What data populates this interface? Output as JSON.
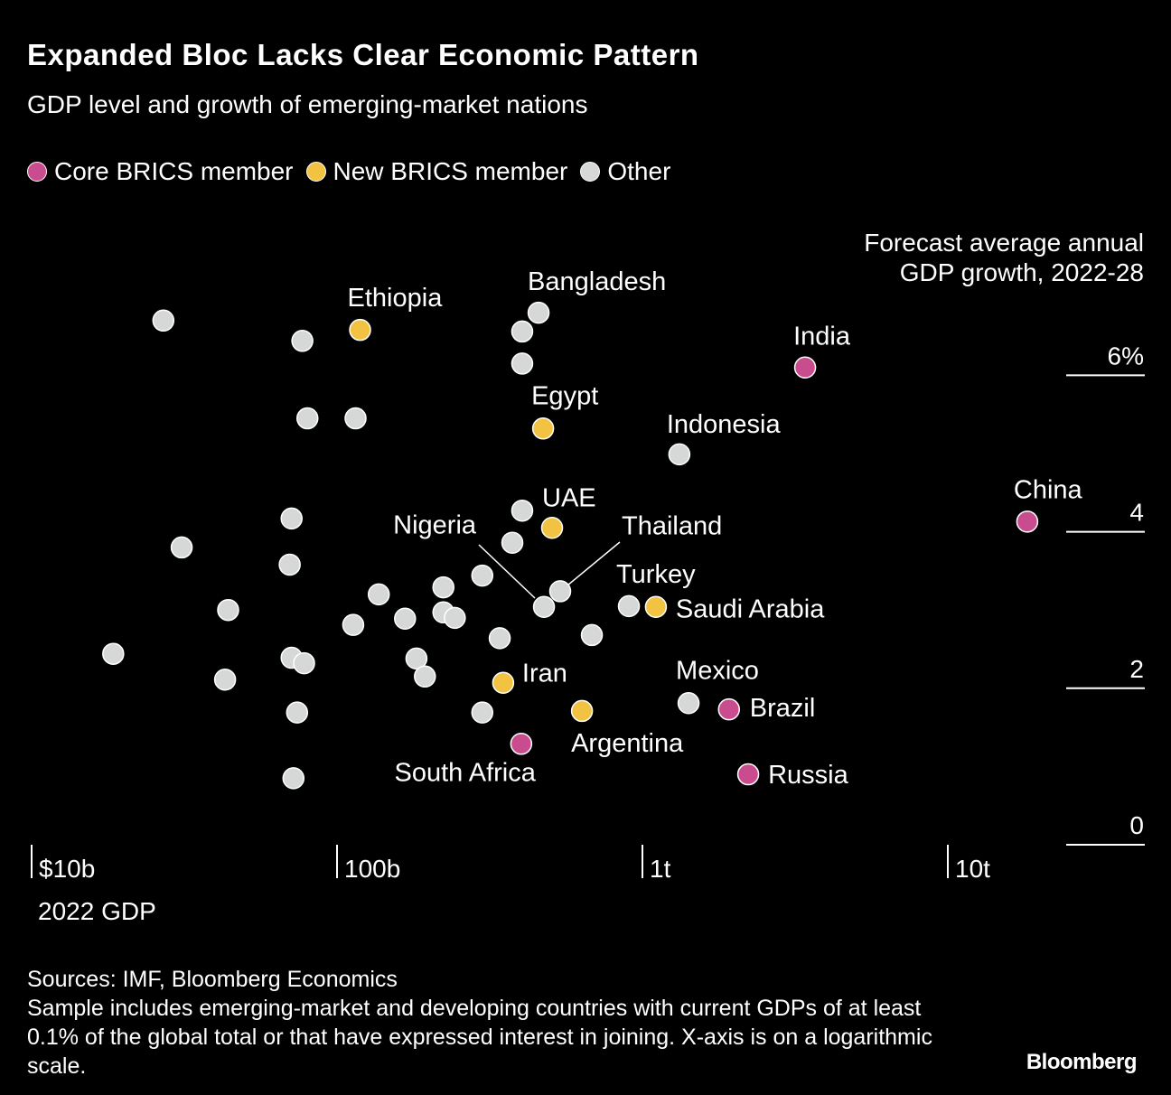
{
  "title": "Expanded Bloc Lacks Clear Economic Pattern",
  "subtitle": "GDP level and growth of emerging-market nations",
  "legend": [
    {
      "label": "Core BRICS member",
      "color": "#c94c8e"
    },
    {
      "label": "New BRICS member",
      "color": "#f2c343"
    },
    {
      "label": "Other",
      "color": "#d6d8d8"
    }
  ],
  "footer": {
    "sources": "Sources: IMF, Bloomberg Economics",
    "note": "Sample includes emerging-market and developing countries with current GDPs of at least 0.1% of the global total or that have expressed interest in joining. X-axis is on a logarithmic scale."
  },
  "logo": "Bloomberg",
  "chart_data": {
    "type": "scatter",
    "xlabel": "2022 GDP",
    "ylabel": "Forecast average annual GDP growth, 2022-28",
    "ylabel_lines": [
      "Forecast average annual",
      "GDP growth, 2022-28"
    ],
    "x_scale": "log",
    "x_unit": "billion USD",
    "xlim": [
      10,
      30000
    ],
    "ylim": [
      0,
      7
    ],
    "x_ticks": [
      {
        "value": 10,
        "label": "$10b"
      },
      {
        "value": 100,
        "label": "100b"
      },
      {
        "value": 1000,
        "label": "1t"
      },
      {
        "value": 10000,
        "label": "10t"
      }
    ],
    "y_ticks": [
      {
        "value": 0,
        "label": "0"
      },
      {
        "value": 2,
        "label": "2"
      },
      {
        "value": 4,
        "label": "4"
      },
      {
        "value": 6,
        "label": "6%"
      }
    ],
    "grid": false,
    "legend_placement": "top-left",
    "points": [
      {
        "label": "India",
        "group": "core",
        "x": 3410,
        "y": 6.1
      },
      {
        "label": "China",
        "group": "core",
        "x": 18200,
        "y": 4.13
      },
      {
        "label": "Brazil",
        "group": "core",
        "x": 1920,
        "y": 1.73
      },
      {
        "label": "Russia",
        "group": "core",
        "x": 2220,
        "y": 0.9
      },
      {
        "label": "South Africa",
        "group": "core",
        "x": 401,
        "y": 1.29
      },
      {
        "label": "Ethiopia",
        "group": "new",
        "x": 119,
        "y": 6.58
      },
      {
        "label": "Egypt",
        "group": "new",
        "x": 473,
        "y": 5.32
      },
      {
        "label": "UAE",
        "group": "new",
        "x": 506,
        "y": 4.05
      },
      {
        "label": "Saudi Arabia",
        "group": "new",
        "x": 1107,
        "y": 3.04
      },
      {
        "label": "Iran",
        "group": "new",
        "x": 350,
        "y": 2.07
      },
      {
        "label": "Argentina",
        "group": "new",
        "x": 634,
        "y": 1.71
      },
      {
        "label": "Bangladesh",
        "group": "other",
        "x": 457,
        "y": 6.8
      },
      {
        "label": "Indonesia",
        "group": "other",
        "x": 1321,
        "y": 4.99
      },
      {
        "label": "Thailand",
        "group": "other",
        "x": 538,
        "y": 3.24
      },
      {
        "label": "Nigeria",
        "group": "other",
        "x": 476,
        "y": 3.04
      },
      {
        "label": "Turkey",
        "group": "other",
        "x": 903,
        "y": 3.05
      },
      {
        "label": "Mexico",
        "group": "other",
        "x": 1416,
        "y": 1.81
      },
      {
        "label": "",
        "group": "other",
        "x": 27,
        "y": 6.7
      },
      {
        "label": "",
        "group": "other",
        "x": 77,
        "y": 6.44
      },
      {
        "label": "",
        "group": "other",
        "x": 404,
        "y": 6.56
      },
      {
        "label": "",
        "group": "other",
        "x": 404,
        "y": 6.15
      },
      {
        "label": "",
        "group": "other",
        "x": 80,
        "y": 5.45
      },
      {
        "label": "",
        "group": "other",
        "x": 115,
        "y": 5.45
      },
      {
        "label": "",
        "group": "other",
        "x": 404,
        "y": 4.27
      },
      {
        "label": "",
        "group": "other",
        "x": 71,
        "y": 4.17
      },
      {
        "label": "",
        "group": "other",
        "x": 31,
        "y": 3.8
      },
      {
        "label": "",
        "group": "other",
        "x": 70,
        "y": 3.58
      },
      {
        "label": "",
        "group": "other",
        "x": 375,
        "y": 3.86
      },
      {
        "label": "",
        "group": "other",
        "x": 299,
        "y": 3.44
      },
      {
        "label": "",
        "group": "other",
        "x": 223,
        "y": 3.29
      },
      {
        "label": "",
        "group": "other",
        "x": 137,
        "y": 3.2
      },
      {
        "label": "",
        "group": "other",
        "x": 44,
        "y": 3.0
      },
      {
        "label": "",
        "group": "other",
        "x": 113,
        "y": 2.81
      },
      {
        "label": "",
        "group": "other",
        "x": 167,
        "y": 2.89
      },
      {
        "label": "",
        "group": "other",
        "x": 223,
        "y": 2.97
      },
      {
        "label": "",
        "group": "other",
        "x": 243,
        "y": 2.9
      },
      {
        "label": "",
        "group": "other",
        "x": 683,
        "y": 2.68
      },
      {
        "label": "",
        "group": "other",
        "x": 341,
        "y": 2.64
      },
      {
        "label": "",
        "group": "other",
        "x": 18.5,
        "y": 2.44
      },
      {
        "label": "",
        "group": "other",
        "x": 71,
        "y": 2.39
      },
      {
        "label": "",
        "group": "other",
        "x": 78,
        "y": 2.32
      },
      {
        "label": "",
        "group": "other",
        "x": 182,
        "y": 2.38
      },
      {
        "label": "",
        "group": "other",
        "x": 194,
        "y": 2.15
      },
      {
        "label": "",
        "group": "other",
        "x": 43,
        "y": 2.11
      },
      {
        "label": "",
        "group": "other",
        "x": 74,
        "y": 1.69
      },
      {
        "label": "",
        "group": "other",
        "x": 299,
        "y": 1.69
      },
      {
        "label": "",
        "group": "other",
        "x": 72,
        "y": 0.85
      }
    ]
  }
}
